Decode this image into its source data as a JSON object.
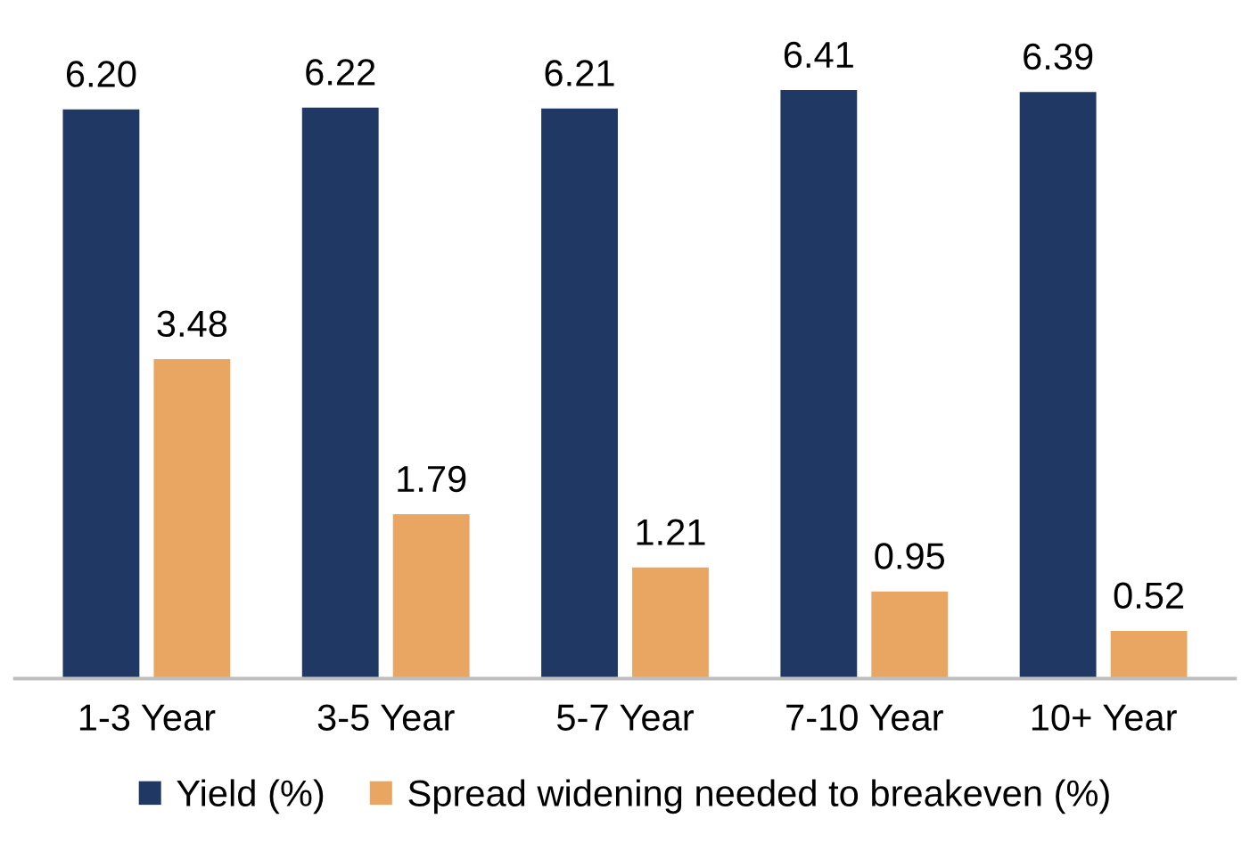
{
  "chart_data": {
    "type": "bar",
    "categories": [
      "1-3 Year",
      "3-5 Year",
      "5-7 Year",
      "7-10 Year",
      "10+ Year"
    ],
    "series": [
      {
        "name": "Yield (%)",
        "color": "#1f3864",
        "values": [
          6.2,
          6.22,
          6.21,
          6.41,
          6.39
        ],
        "value_labels": [
          "6.20",
          "6.22",
          "6.21",
          "6.41",
          "6.39"
        ]
      },
      {
        "name": "Spread widening needed to breakeven (%)",
        "color": "#e9a662",
        "values": [
          3.48,
          1.79,
          1.21,
          0.95,
          0.52
        ],
        "value_labels": [
          "3.48",
          "1.79",
          "1.21",
          "0.95",
          "0.52"
        ]
      }
    ],
    "legend": "bottom",
    "grid": false
  }
}
